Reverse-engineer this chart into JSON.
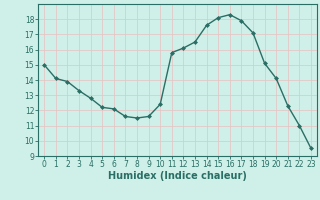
{
  "x": [
    0,
    1,
    2,
    3,
    4,
    5,
    6,
    7,
    8,
    9,
    10,
    11,
    12,
    13,
    14,
    15,
    16,
    17,
    18,
    19,
    20,
    21,
    22,
    23
  ],
  "y": [
    15.0,
    14.1,
    13.9,
    13.3,
    12.8,
    12.2,
    12.1,
    11.6,
    11.5,
    11.6,
    12.4,
    15.8,
    16.1,
    16.5,
    17.6,
    18.1,
    18.3,
    17.9,
    17.1,
    15.1,
    14.1,
    12.3,
    11.0,
    9.5
  ],
  "line_color": "#2a6e65",
  "marker": "D",
  "markersize": 2.0,
  "linewidth": 1.0,
  "bg_color": "#cef0e8",
  "grid_color": "#e8c0c0",
  "xlabel": "Humidex (Indice chaleur)",
  "xlabel_fontsize": 7,
  "ylim": [
    9,
    19
  ],
  "xlim": [
    -0.5,
    23.5
  ],
  "yticks": [
    9,
    10,
    11,
    12,
    13,
    14,
    15,
    16,
    17,
    18
  ],
  "xticks": [
    0,
    1,
    2,
    3,
    4,
    5,
    6,
    7,
    8,
    9,
    10,
    11,
    12,
    13,
    14,
    15,
    16,
    17,
    18,
    19,
    20,
    21,
    22,
    23
  ],
  "tick_fontsize": 5.5,
  "tick_color": "#2a6e65",
  "spine_color": "#2a6e65"
}
